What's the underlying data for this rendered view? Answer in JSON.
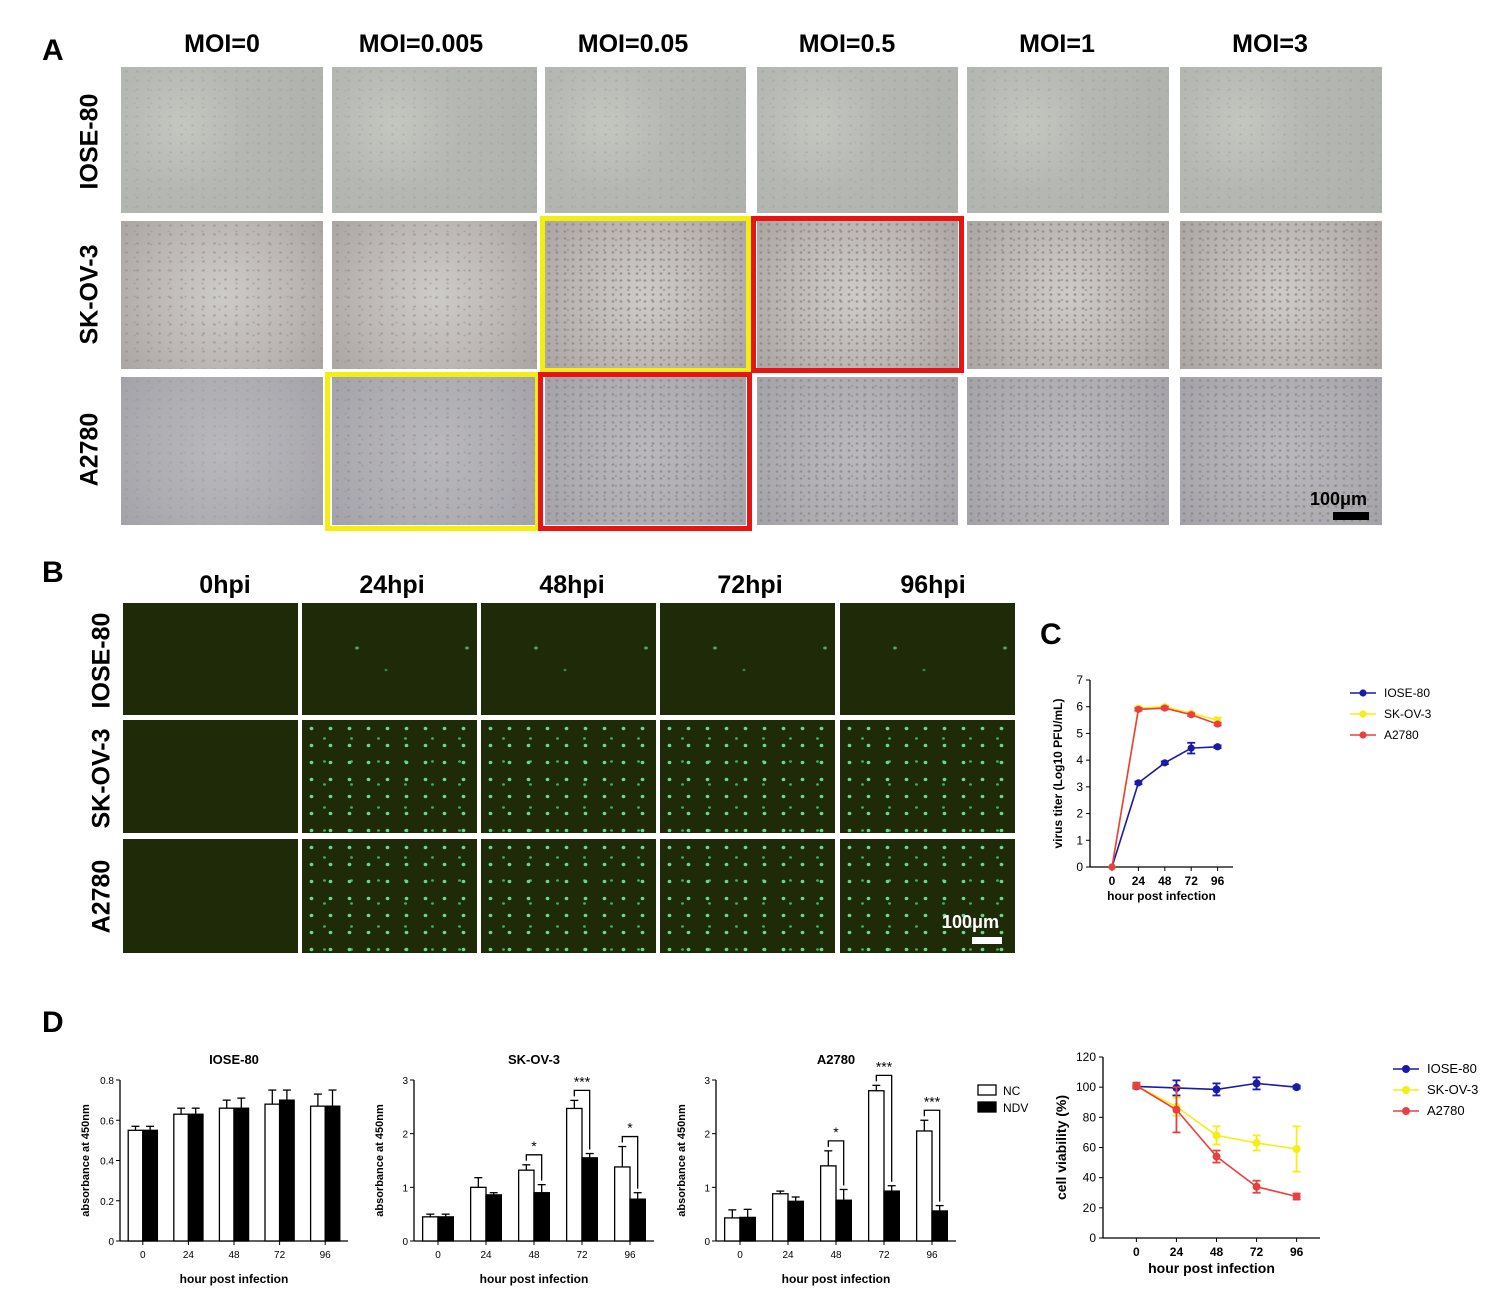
{
  "panels": {
    "a": "A",
    "b": "B",
    "c": "C",
    "d": "D"
  },
  "panel_a": {
    "columns": [
      "MOI=0",
      "MOI=0.005",
      "MOI=0.05",
      "MOI=0.5",
      "MOI=1",
      "MOI=3"
    ],
    "rows": [
      "IOSE-80",
      "SK-OV-3",
      "A2780"
    ],
    "scalebar": "100μm",
    "highlight_colors": {
      "yellow": "#f2ee12",
      "red": "#e81414"
    }
  },
  "panel_b": {
    "columns": [
      "0hpi",
      "24hpi",
      "48hpi",
      "72hpi",
      "96hpi"
    ],
    "rows": [
      "IOSE-80",
      "SK-OV-3",
      "A2780"
    ],
    "scalebar": "100μm"
  },
  "chart_data": [
    {
      "id": "C",
      "type": "line",
      "title": "",
      "xlabel": "hour post infection",
      "ylabel": "virus titer (Log10 PFU/mL)",
      "x": [
        0,
        24,
        48,
        72,
        96
      ],
      "xlim": [
        -20,
        110
      ],
      "ylim": [
        0,
        7
      ],
      "yticks": [
        0,
        1,
        2,
        3,
        4,
        5,
        6,
        7
      ],
      "legend": "right",
      "series": [
        {
          "name": "IOSE-80",
          "color": "#1a1aa8",
          "values": [
            0,
            3.15,
            3.9,
            4.45,
            4.5
          ],
          "err": [
            0,
            0.05,
            0.05,
            0.2,
            0.05
          ]
        },
        {
          "name": "SK-OV-3",
          "color": "#f5ee12",
          "values": [
            0,
            5.95,
            6.0,
            5.75,
            5.5
          ],
          "err": [
            0,
            0.05,
            0.05,
            0.05,
            0.1
          ]
        },
        {
          "name": "A2780",
          "color": "#e84040",
          "values": [
            0,
            5.9,
            5.95,
            5.7,
            5.35
          ],
          "err": [
            0,
            0.05,
            0.05,
            0.05,
            0.05
          ]
        }
      ]
    },
    {
      "id": "D1",
      "type": "bar",
      "title": "IOSE-80",
      "xlabel": "hour post infection",
      "ylabel": "absorbance at 450nm",
      "categories": [
        "0",
        "24",
        "48",
        "72",
        "96"
      ],
      "ylim": [
        0,
        0.8
      ],
      "yticks": [
        0.0,
        0.2,
        0.4,
        0.6,
        0.8
      ],
      "series": [
        {
          "name": "NC",
          "values": [
            0.55,
            0.63,
            0.66,
            0.68,
            0.67
          ],
          "err": [
            0.02,
            0.03,
            0.04,
            0.07,
            0.06
          ]
        },
        {
          "name": "NDV",
          "values": [
            0.55,
            0.63,
            0.66,
            0.7,
            0.67
          ],
          "err": [
            0.02,
            0.03,
            0.05,
            0.05,
            0.08
          ]
        }
      ],
      "significance": []
    },
    {
      "id": "D2",
      "type": "bar",
      "title": "SK-OV-3",
      "xlabel": "hour post infection",
      "ylabel": "absorbance at 450nm",
      "categories": [
        "0",
        "24",
        "48",
        "72",
        "96"
      ],
      "ylim": [
        0,
        3
      ],
      "yticks": [
        0,
        1,
        2,
        3
      ],
      "series": [
        {
          "name": "NC",
          "values": [
            0.45,
            1.0,
            1.32,
            2.47,
            1.38
          ],
          "err": [
            0.05,
            0.18,
            0.1,
            0.15,
            0.38
          ]
        },
        {
          "name": "NDV",
          "values": [
            0.45,
            0.86,
            0.9,
            1.55,
            0.78
          ],
          "err": [
            0.05,
            0.04,
            0.15,
            0.08,
            0.12
          ]
        }
      ],
      "significance": [
        {
          "index": 2,
          "label": "*"
        },
        {
          "index": 3,
          "label": "***"
        },
        {
          "index": 4,
          "label": "*"
        }
      ]
    },
    {
      "id": "D3",
      "type": "bar",
      "title": "A2780",
      "xlabel": "hour post infection",
      "ylabel": "absorbance at 450nm",
      "categories": [
        "0",
        "24",
        "48",
        "72",
        "96"
      ],
      "ylim": [
        0,
        3
      ],
      "yticks": [
        0,
        1,
        2,
        3
      ],
      "series": [
        {
          "name": "NC",
          "values": [
            0.43,
            0.88,
            1.4,
            2.8,
            2.05
          ],
          "err": [
            0.15,
            0.05,
            0.28,
            0.1,
            0.2
          ]
        },
        {
          "name": "NDV",
          "values": [
            0.44,
            0.74,
            0.76,
            0.93,
            0.56
          ],
          "err": [
            0.15,
            0.08,
            0.2,
            0.1,
            0.1
          ]
        }
      ],
      "significance": [
        {
          "index": 2,
          "label": "*"
        },
        {
          "index": 3,
          "label": "***"
        },
        {
          "index": 4,
          "label": "***"
        }
      ],
      "legend_entries": [
        "NC",
        "NDV"
      ]
    },
    {
      "id": "D4",
      "type": "line",
      "title": "",
      "xlabel": "hour post infection",
      "ylabel": "cell viability (%)",
      "x": [
        0,
        24,
        48,
        72,
        96
      ],
      "xlim": [
        -20,
        110
      ],
      "ylim": [
        0,
        120
      ],
      "yticks": [
        0,
        20,
        40,
        60,
        80,
        100,
        120
      ],
      "legend": "right",
      "series": [
        {
          "name": "IOSE-80",
          "color": "#1a1aa8",
          "values": [
            100.5,
            99.5,
            98.5,
            102.5,
            100
          ],
          "err": [
            1,
            5,
            4,
            4,
            1
          ]
        },
        {
          "name": "SK-OV-3",
          "color": "#f5ee12",
          "values": [
            101,
            87,
            68,
            63,
            59
          ],
          "err": [
            2,
            6,
            6,
            5,
            15
          ]
        },
        {
          "name": "A2780",
          "color": "#e84040",
          "values": [
            101,
            85,
            54,
            34,
            27.5
          ],
          "err": [
            2,
            15,
            4,
            4,
            2
          ]
        }
      ]
    }
  ]
}
